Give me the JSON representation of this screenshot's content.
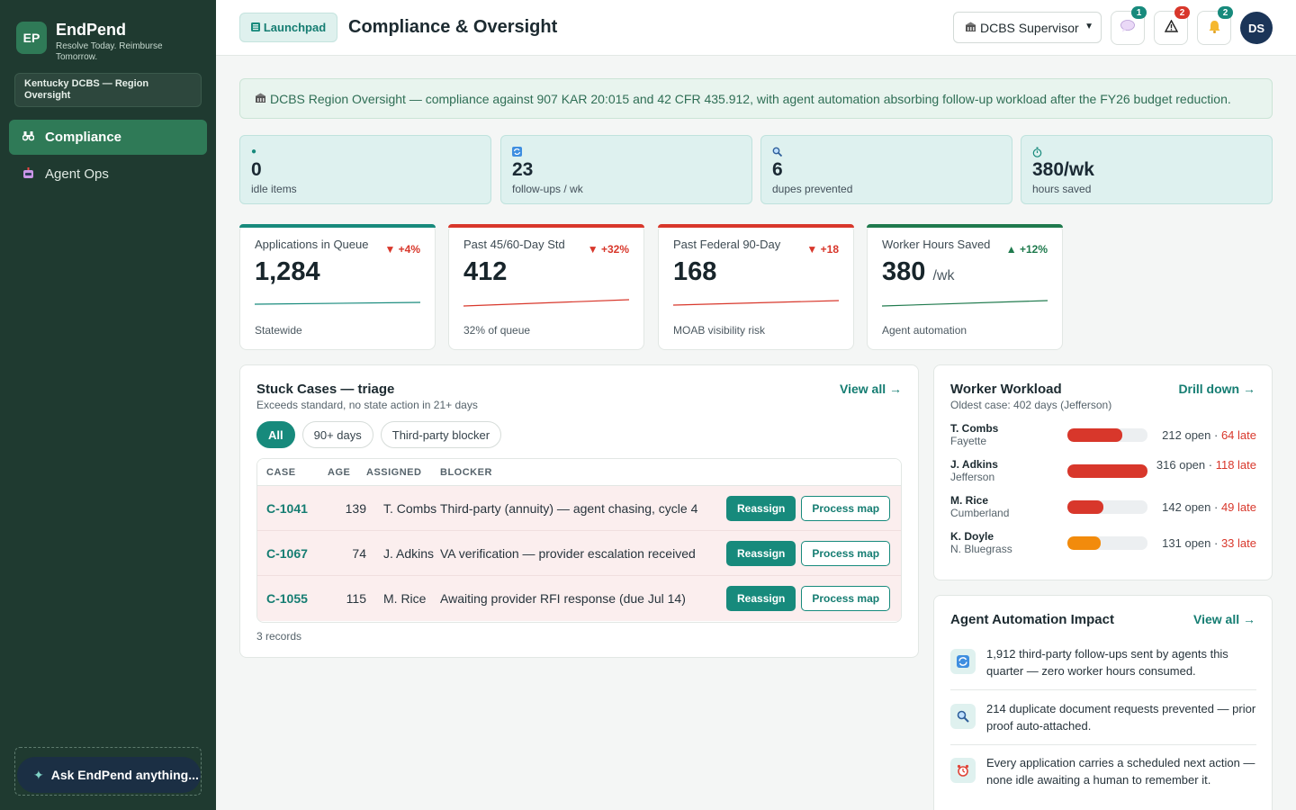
{
  "sidebar": {
    "logo": "EP",
    "app_name": "EndPend",
    "tagline": "Resolve Today. Reimburse Tomorrow.",
    "region": "Kentucky DCBS — Region Oversight",
    "nav": [
      {
        "label": "Compliance",
        "icon": "binoculars-icon",
        "active": true
      },
      {
        "label": "Agent Ops",
        "icon": "robot-icon",
        "active": false
      }
    ],
    "ask_label": "Ask EndPend anything..."
  },
  "header": {
    "launchpad_label": "Launchpad",
    "title": "Compliance & Oversight",
    "role": "DCBS Supervisor",
    "messages_count": "1",
    "alerts_count": "2",
    "notifications_count": "2",
    "avatar": "DS"
  },
  "banner": "DCBS Region Oversight — compliance against 907 KAR 20:015 and 42 CFR 435.912, with agent automation absorbing follow-up workload after the FY26 budget reduction.",
  "mini_stats": [
    {
      "icon": "dot-icon",
      "value": "0",
      "label": "idle items"
    },
    {
      "icon": "refresh-icon",
      "value": "23",
      "label": "follow-ups / wk"
    },
    {
      "icon": "magnifier-icon",
      "value": "6",
      "label": "dupes prevented"
    },
    {
      "icon": "stopwatch-icon",
      "value": "380/wk",
      "label": "hours saved"
    }
  ],
  "kpis": [
    {
      "label": "Applications in Queue",
      "delta": "▼ +4%",
      "value": "1,284",
      "unit": "",
      "foot": "Statewide",
      "color": "#178a7c"
    },
    {
      "label": "Past 45/60-Day Std",
      "delta": "▼ +32%",
      "value": "412",
      "unit": "",
      "foot": "32% of queue",
      "color": "#d8372b"
    },
    {
      "label": "Past Federal 90-Day",
      "delta": "▼ +18",
      "value": "168",
      "unit": "",
      "foot": "MOAB visibility risk",
      "color": "#d8372b"
    },
    {
      "label": "Worker Hours Saved",
      "delta": "▲ +12%",
      "value": "380",
      "unit": "/wk",
      "foot": "Agent automation",
      "color": "#1f7a4d"
    }
  ],
  "stuck": {
    "title": "Stuck Cases — triage",
    "subtitle": "Exceeds standard, no state action in 21+ days",
    "view_all": "View all →",
    "filters": [
      "All",
      "90+ days",
      "Third-party blocker"
    ],
    "columns": [
      "CASE",
      "AGE",
      "ASSIGNED",
      "BLOCKER"
    ],
    "rows": [
      {
        "case": "C-1041",
        "age": "139",
        "assigned": "T. Combs",
        "blocker": "Third-party (annuity) — agent chasing, cycle 4"
      },
      {
        "case": "C-1067",
        "age": "74",
        "assigned": "J. Adkins",
        "blocker": "VA verification — provider escalation received"
      },
      {
        "case": "C-1055",
        "age": "115",
        "assigned": "M. Rice",
        "blocker": "Awaiting provider RFI response (due Jul 14)"
      }
    ],
    "reassign": "Reassign",
    "process_map": "Process map",
    "records": "3 records"
  },
  "workload": {
    "title": "Worker Workload",
    "subtitle": "Oldest case: 402 days (Jefferson)",
    "link": "Drill down →",
    "workers": [
      {
        "name": "T. Combs",
        "region": "Fayette",
        "open": "212 open",
        "sep": " · ",
        "late": "64 late",
        "fill": 0.68,
        "color": "#d8372b"
      },
      {
        "name": "J. Adkins",
        "region": "Jefferson",
        "open": "316 open",
        "sep": " · ",
        "late": "118 late",
        "fill": 1.0,
        "color": "#d8372b"
      },
      {
        "name": "M. Rice",
        "region": "Cumberland",
        "open": "142 open",
        "sep": " · ",
        "late": "49 late",
        "fill": 0.45,
        "color": "#d8372b"
      },
      {
        "name": "K. Doyle",
        "region": "N. Bluegrass",
        "open": "131 open",
        "sep": " · ",
        "late": "33 late",
        "fill": 0.42,
        "color": "#f28b0c"
      }
    ]
  },
  "impact": {
    "title": "Agent Automation Impact",
    "link": "View all →",
    "items": [
      {
        "icon": "refresh-icon",
        "text": "1,912 third-party follow-ups sent by agents this quarter — zero worker hours consumed."
      },
      {
        "icon": "magnifier-icon",
        "text": "214 duplicate document requests prevented — prior proof auto-attached."
      },
      {
        "icon": "alarm-clock-icon",
        "text": "Every application carries a scheduled next action — none idle awaiting a human to remember it."
      }
    ]
  }
}
